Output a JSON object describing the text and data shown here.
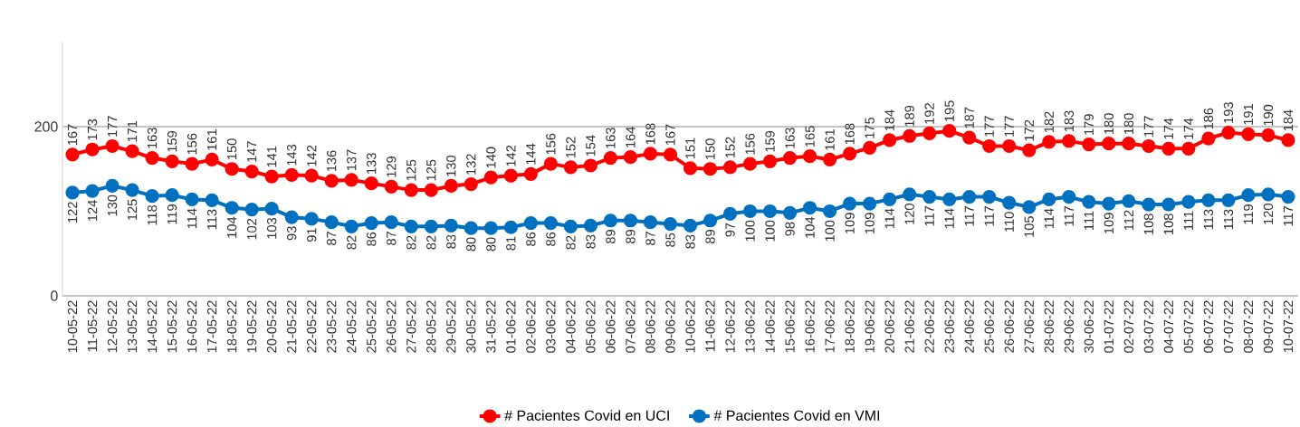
{
  "chart_data": {
    "type": "line",
    "categories": [
      "10-05-22",
      "11-05-22",
      "12-05-22",
      "13-05-22",
      "14-05-22",
      "15-05-22",
      "16-05-22",
      "17-05-22",
      "18-05-22",
      "19-05-22",
      "20-05-22",
      "21-05-22",
      "22-05-22",
      "23-05-22",
      "24-05-22",
      "25-05-22",
      "26-05-22",
      "27-05-22",
      "28-05-22",
      "29-05-22",
      "30-05-22",
      "31-05-22",
      "01-06-22",
      "02-06-22",
      "03-06-22",
      "04-06-22",
      "05-06-22",
      "06-06-22",
      "07-06-22",
      "08-06-22",
      "09-06-22",
      "10-06-22",
      "11-06-22",
      "12-06-22",
      "13-06-22",
      "14-06-22",
      "15-06-22",
      "16-06-22",
      "17-06-22",
      "18-06-22",
      "19-06-22",
      "20-06-22",
      "21-06-22",
      "22-06-22",
      "23-06-22",
      "24-06-22",
      "25-06-22",
      "26-06-22",
      "27-06-22",
      "28-06-22",
      "29-06-22",
      "30-06-22",
      "01-07-22",
      "02-07-22",
      "03-07-22",
      "04-07-22",
      "05-07-22",
      "06-07-22",
      "07-07-22",
      "08-07-22",
      "09-07-22",
      "10-07-22"
    ],
    "series": [
      {
        "name": "# Pacientes Covid en UCI",
        "color": "#ff0000",
        "values": [
          167,
          173,
          177,
          171,
          163,
          159,
          156,
          161,
          150,
          147,
          141,
          143,
          142,
          136,
          137,
          133,
          129,
          125,
          125,
          130,
          132,
          140,
          142,
          144,
          156,
          152,
          154,
          163,
          164,
          168,
          167,
          151,
          150,
          152,
          156,
          159,
          163,
          165,
          161,
          168,
          175,
          184,
          189,
          192,
          195,
          187,
          177,
          177,
          172,
          182,
          183,
          179,
          180,
          180,
          177,
          174,
          174,
          186,
          193,
          191,
          190,
          184
        ]
      },
      {
        "name": "# Pacientes Covid en VMI",
        "color": "#0070c0",
        "values": [
          122,
          124,
          130,
          125,
          118,
          119,
          114,
          113,
          104,
          102,
          103,
          93,
          91,
          87,
          82,
          86,
          87,
          82,
          82,
          83,
          80,
          80,
          81,
          86,
          86,
          82,
          83,
          89,
          89,
          87,
          85,
          83,
          89,
          97,
          100,
          100,
          98,
          104,
          100,
          109,
          109,
          114,
          120,
          117,
          114,
          117,
          117,
          110,
          105,
          114,
          117,
          111,
          109,
          112,
          108,
          108,
          111,
          113,
          113,
          119,
          120,
          117
        ]
      }
    ],
    "ylim": [
      0,
      300
    ],
    "yticks": [
      0,
      200
    ],
    "grid": "y",
    "legend": "bottom",
    "marker": "circle",
    "line_style": "solid",
    "data_labels": true
  }
}
